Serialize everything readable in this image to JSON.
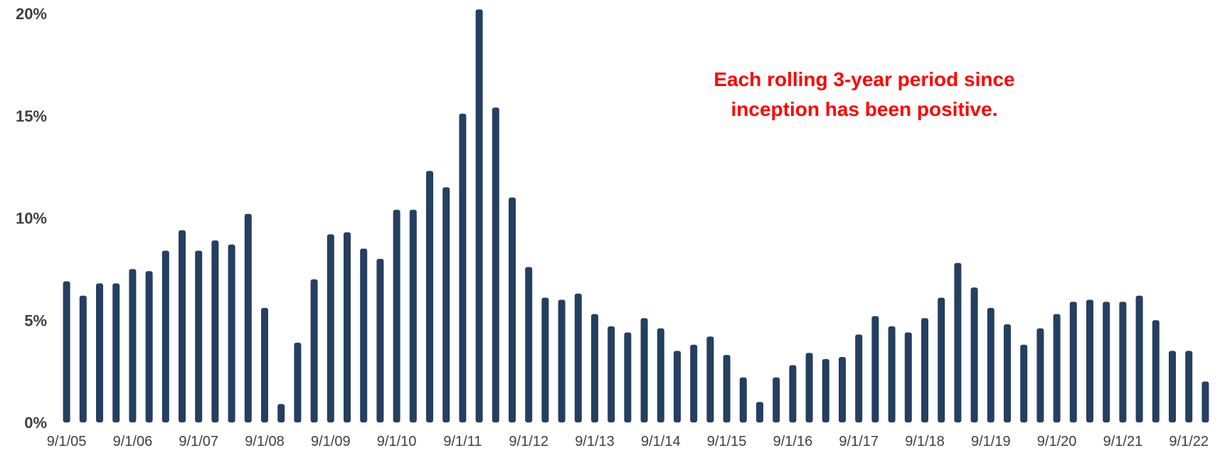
{
  "chart_data": {
    "type": "bar",
    "title": "",
    "xlabel": "",
    "ylabel": "",
    "ylim": [
      0,
      20
    ],
    "yticks": [
      {
        "value": 0,
        "label": "0%"
      },
      {
        "value": 5,
        "label": "5%"
      },
      {
        "value": 10,
        "label": "10%"
      },
      {
        "value": 15,
        "label": "15%"
      },
      {
        "value": 20,
        "label": "20%"
      }
    ],
    "grid": false,
    "legend": "none",
    "categories": [
      "9/1/05",
      "12/1/05",
      "3/1/06",
      "6/1/06",
      "9/1/06",
      "12/1/06",
      "3/1/07",
      "6/1/07",
      "9/1/07",
      "12/1/07",
      "3/1/08",
      "6/1/08",
      "9/1/08",
      "12/1/08",
      "3/1/09",
      "6/1/09",
      "9/1/09",
      "12/1/09",
      "3/1/10",
      "6/1/10",
      "9/1/10",
      "12/1/10",
      "3/1/11",
      "6/1/11",
      "9/1/11",
      "12/1/11",
      "3/1/12",
      "6/1/12",
      "9/1/12",
      "12/1/12",
      "3/1/13",
      "6/1/13",
      "9/1/13",
      "12/1/13",
      "3/1/14",
      "6/1/14",
      "9/1/14",
      "12/1/14",
      "3/1/15",
      "6/1/15",
      "9/1/15",
      "12/1/15",
      "3/1/16",
      "6/1/16",
      "9/1/16",
      "12/1/16",
      "3/1/17",
      "6/1/17",
      "9/1/17",
      "12/1/17",
      "3/1/18",
      "6/1/18",
      "9/1/18",
      "12/1/18",
      "3/1/19",
      "6/1/19",
      "9/1/19",
      "12/1/19",
      "3/1/20",
      "6/1/20",
      "9/1/20",
      "12/1/20",
      "3/1/21",
      "6/1/21",
      "9/1/21",
      "12/1/21",
      "3/1/22",
      "6/1/22",
      "9/1/22",
      "12/1/22"
    ],
    "x_tick_labels": [
      "9/1/05",
      "9/1/06",
      "9/1/07",
      "9/1/08",
      "9/1/09",
      "9/1/10",
      "9/1/11",
      "9/1/12",
      "9/1/13",
      "9/1/14",
      "9/1/15",
      "9/1/16",
      "9/1/17",
      "9/1/18",
      "9/1/19",
      "9/1/20",
      "9/1/21",
      "9/1/22"
    ],
    "series": [
      {
        "values": [
          6.9,
          6.2,
          6.8,
          6.8,
          7.5,
          7.4,
          8.4,
          9.4,
          8.4,
          8.9,
          8.7,
          10.2,
          5.6,
          0.9,
          3.9,
          7.0,
          9.2,
          9.3,
          8.5,
          8.0,
          10.4,
          10.4,
          12.3,
          11.5,
          15.1,
          20.2,
          15.4,
          11.0,
          7.6,
          6.1,
          6.0,
          6.3,
          5.3,
          4.7,
          4.4,
          5.1,
          4.6,
          3.5,
          3.8,
          4.2,
          3.3,
          2.2,
          1.0,
          2.2,
          2.8,
          3.4,
          3.1,
          3.2,
          4.3,
          5.2,
          4.7,
          4.4,
          5.1,
          6.1,
          7.8,
          6.6,
          5.6,
          4.8,
          3.8,
          4.6,
          5.3,
          5.9,
          6.0,
          5.9,
          5.9,
          6.2,
          5.0,
          3.5,
          3.5,
          2.0
        ]
      }
    ],
    "annotation": {
      "lines": [
        "Each rolling 3-year period since",
        "inception has been positive."
      ]
    },
    "colors": {
      "bar": "#243f60",
      "annotation": "#ff0000",
      "tick_text": "#404040"
    }
  }
}
